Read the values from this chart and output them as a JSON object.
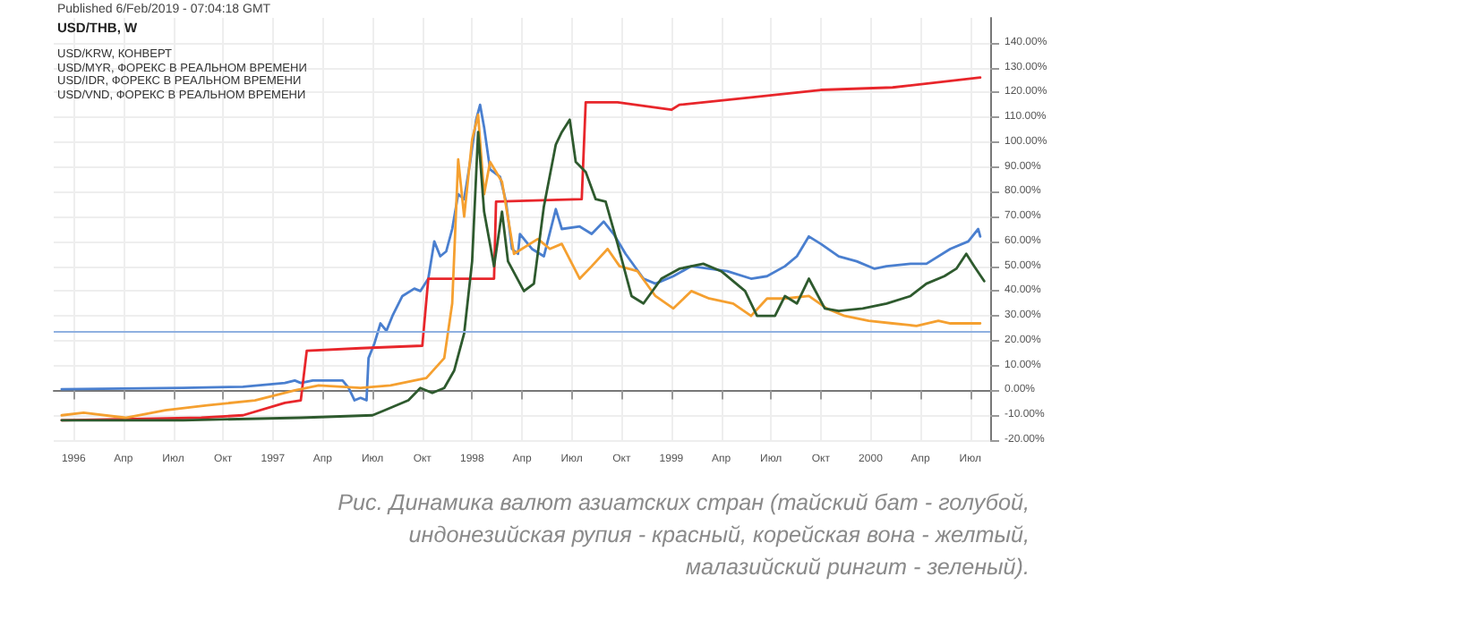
{
  "chart_data": {
    "type": "line",
    "title": "USD/THB, W",
    "annotations": [
      "Published 6/Feb/2019 - 07:04:18 GMT",
      "USD/KRW, КОНВЕРТ",
      "USD/MYR, ФОРЕКС В РЕАЛЬНОМ ВРЕМЕНИ",
      "USD/IDR, ФОРЕКС В РЕАЛЬНОМ ВРЕМЕНИ",
      "USD/VND, ФОРЕКС В РЕАЛЬНОМ ВРЕМЕНИ",
      "Рис. Динамика валют азиатских стран (тайский бат - голубой, индонезийская рупия - красный, корейская вона - желтый,  малазийский рингит - зеленый)."
    ],
    "xlim": [
      1995.9,
      2000.6
    ],
    "xticks": [
      {
        "value": 1996,
        "label": "1996"
      },
      {
        "value": 1996.25,
        "label": "Апр"
      },
      {
        "value": 1996.5,
        "label": "Июл"
      },
      {
        "value": 1996.75,
        "label": "Окт"
      },
      {
        "value": 1997,
        "label": "1997"
      },
      {
        "value": 1997.25,
        "label": "Апр"
      },
      {
        "value": 1997.5,
        "label": "Июл"
      },
      {
        "value": 1997.75,
        "label": "Окт"
      },
      {
        "value": 1998,
        "label": "1998"
      },
      {
        "value": 1998.25,
        "label": "Апр"
      },
      {
        "value": 1998.5,
        "label": "Июл"
      },
      {
        "value": 1998.75,
        "label": "Окт"
      },
      {
        "value": 1999,
        "label": "1999"
      },
      {
        "value": 1999.25,
        "label": "Апр"
      },
      {
        "value": 1999.5,
        "label": "Июл"
      },
      {
        "value": 1999.75,
        "label": "Окт"
      },
      {
        "value": 2000,
        "label": "2000"
      },
      {
        "value": 2000.25,
        "label": "Апр"
      },
      {
        "value": 2000.5,
        "label": "Июл"
      }
    ],
    "ylim": [
      -20,
      150
    ],
    "yticks": [
      {
        "value": -20,
        "label": "-20.00%"
      },
      {
        "value": -10,
        "label": "-10.00%"
      },
      {
        "value": 0,
        "label": "0.00%"
      },
      {
        "value": 10,
        "label": "10.00%"
      },
      {
        "value": 20,
        "label": "20.00%"
      },
      {
        "value": 30,
        "label": "30.00%"
      },
      {
        "value": 40,
        "label": "40.00%"
      },
      {
        "value": 50,
        "label": "50.00%"
      },
      {
        "value": 60,
        "label": "60.00%"
      },
      {
        "value": 70,
        "label": "70.00%"
      },
      {
        "value": 80,
        "label": "80.00%"
      },
      {
        "value": 90,
        "label": "90.00%"
      },
      {
        "value": 100,
        "label": "100.00%"
      },
      {
        "value": 110,
        "label": "110.00%"
      },
      {
        "value": 120,
        "label": "120.00%"
      },
      {
        "value": 130,
        "label": "130.00%"
      },
      {
        "value": 140,
        "label": "140.00%"
      }
    ],
    "grid": true,
    "marker": "none",
    "line_style": "solid",
    "ref_lines": [
      {
        "axis": "y",
        "value": 24,
        "color": "#8fb0e0"
      }
    ],
    "series": [
      {
        "color": "#4a7fcf",
        "x": [
          1995.94,
          1996.55,
          1996.85,
          1997.06,
          1997.11,
          1997.14,
          1997.2,
          1997.35,
          1997.38,
          1997.41,
          1997.44,
          1997.47,
          1997.48,
          1997.51,
          1997.54,
          1997.57,
          1997.6,
          1997.65,
          1997.71,
          1997.74,
          1997.78,
          1997.81,
          1997.84,
          1997.87,
          1997.9,
          1997.93,
          1997.96,
          1997.99,
          1998.02,
          1998.04,
          1998.06,
          1998.09,
          1998.14,
          1998.17,
          1998.2,
          1998.23,
          1998.24,
          1998.3,
          1998.36,
          1998.42,
          1998.45,
          1998.54,
          1998.6,
          1998.66,
          1998.71,
          1998.77,
          1998.86,
          1998.92,
          1999.01,
          1999.1,
          1999.19,
          1999.28,
          1999.4,
          1999.48,
          1999.57,
          1999.63,
          1999.69,
          1999.75,
          1999.84,
          1999.93,
          2000.02,
          2000.08,
          2000.2,
          2000.28,
          2000.4,
          2000.49,
          2000.54,
          2000.55
        ],
        "values": [
          0.5,
          1,
          1.5,
          3,
          4,
          3,
          4,
          4,
          1,
          -4,
          -3,
          -4,
          13,
          19,
          27,
          24,
          30,
          38,
          41,
          40,
          45,
          60,
          54,
          56,
          65,
          79,
          77,
          92,
          109,
          115,
          106,
          89,
          86,
          76,
          57,
          55,
          63,
          57,
          54,
          73,
          65,
          66,
          63,
          68,
          63,
          55,
          45,
          43,
          46,
          50,
          49,
          48,
          45,
          46,
          50,
          54,
          62,
          59,
          54,
          52,
          49,
          50,
          51,
          51,
          57,
          60,
          65,
          62
        ]
      },
      {
        "color": "#e8262b",
        "x": [
          1995.94,
          1996.64,
          1996.85,
          1997.06,
          1997.14,
          1997.17,
          1997.44,
          1997.75,
          1997.78,
          1998.11,
          1998.12,
          1998.55,
          1998.57,
          1998.73,
          1999.0,
          1999.04,
          1999.4,
          1999.75,
          2000.11,
          2000.55
        ],
        "values": [
          -12,
          -11,
          -10,
          -5,
          -4,
          16,
          17,
          18,
          45,
          45,
          76,
          77,
          116,
          116,
          113,
          115,
          118,
          121,
          122,
          126
        ]
      },
      {
        "color": "#f5a030",
        "x": [
          1995.94,
          1996.05,
          1996.26,
          1996.46,
          1996.67,
          1996.91,
          1997.11,
          1997.23,
          1997.44,
          1997.59,
          1997.77,
          1997.86,
          1997.9,
          1997.93,
          1997.96,
          1998.0,
          1998.03,
          1998.06,
          1998.09,
          1998.15,
          1998.21,
          1998.33,
          1998.39,
          1998.45,
          1998.54,
          1998.6,
          1998.68,
          1998.74,
          1998.83,
          1998.92,
          1999.01,
          1999.1,
          1999.19,
          1999.31,
          1999.4,
          1999.48,
          1999.57,
          1999.69,
          1999.78,
          1999.87,
          1999.99,
          2000.11,
          2000.23,
          2000.34,
          2000.4,
          2000.55
        ],
        "values": [
          -10,
          -9,
          -11,
          -8,
          -6,
          -4,
          0,
          2,
          1,
          2,
          5,
          13,
          35,
          93,
          70,
          101,
          111,
          79,
          92,
          84,
          55,
          61,
          57,
          59,
          45,
          50,
          57,
          50,
          48,
          38,
          33,
          40,
          37,
          35,
          30,
          37,
          37,
          38,
          33,
          30,
          28,
          27,
          26,
          28,
          27,
          27
        ]
      },
      {
        "color": "#2e5a2e",
        "x": [
          1995.94,
          1996.55,
          1997.14,
          1997.5,
          1997.56,
          1997.68,
          1997.74,
          1997.8,
          1997.86,
          1997.91,
          1997.96,
          1998.0,
          1998.03,
          1998.06,
          1998.11,
          1998.15,
          1998.18,
          1998.26,
          1998.31,
          1998.36,
          1998.42,
          1998.45,
          1998.49,
          1998.52,
          1998.57,
          1998.62,
          1998.67,
          1998.73,
          1998.8,
          1998.86,
          1998.95,
          1999.04,
          1999.16,
          1999.25,
          1999.37,
          1999.43,
          1999.52,
          1999.57,
          1999.63,
          1999.69,
          1999.77,
          1999.84,
          1999.96,
          2000.08,
          2000.2,
          2000.28,
          2000.37,
          2000.43,
          2000.48,
          2000.52,
          2000.57
        ],
        "values": [
          -12,
          -12,
          -11,
          -10,
          -8,
          -4,
          1,
          -1,
          1,
          8,
          23,
          52,
          104,
          72,
          50,
          72,
          52,
          40,
          43,
          74,
          99,
          104,
          109,
          92,
          88,
          77,
          76,
          59,
          38,
          35,
          45,
          49,
          51,
          48,
          40,
          30,
          30,
          38,
          35,
          45,
          33,
          32,
          33,
          35,
          38,
          43,
          46,
          49,
          55,
          50,
          44
        ]
      }
    ]
  }
}
